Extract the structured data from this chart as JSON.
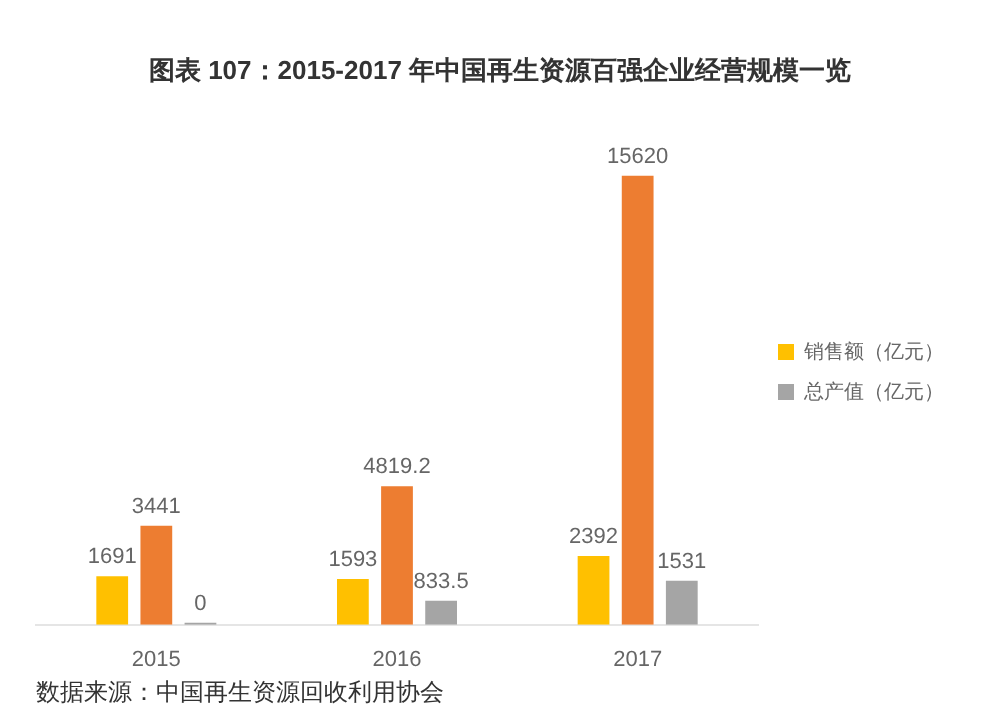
{
  "chart_data": {
    "type": "bar",
    "title": "图表 107：2015-2017 年中国再生资源百强企业经营规模一览",
    "categories": [
      "2015",
      "2016",
      "2017"
    ],
    "series": [
      {
        "name": "销售额（亿元）",
        "color": "#ffc000",
        "values": [
          1691,
          1593,
          2392
        ]
      },
      {
        "color": "#ed7d31",
        "values": [
          3441,
          4819.2,
          15620
        ]
      },
      {
        "name": "总产值（亿元）",
        "color": "#a5a5a5",
        "values": [
          0,
          833.5,
          1531
        ]
      }
    ],
    "data_labels": true,
    "legend": "right",
    "grid": false,
    "annotations": [
      "数据来源：中国再生资源回收利用协会"
    ]
  }
}
